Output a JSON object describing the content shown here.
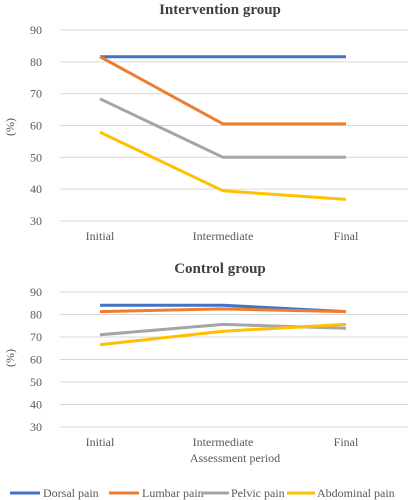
{
  "chart_data": [
    {
      "type": "line",
      "title": "Intervention group",
      "xlabel": "",
      "ylabel": "(%)",
      "categories": [
        "Initial",
        "Intermediate",
        "Final"
      ],
      "ylim": [
        30,
        90
      ],
      "yticks": [
        30,
        40,
        50,
        60,
        70,
        80,
        90
      ],
      "grid": "horizontal",
      "series": [
        {
          "name": "Dorsal pain",
          "color": "#4472C4",
          "values": [
            81.6,
            81.6,
            81.6
          ]
        },
        {
          "name": "Lumbar pain",
          "color": "#ED7D31",
          "values": [
            81.6,
            60.5,
            60.5
          ]
        },
        {
          "name": "Pelvic pain",
          "color": "#A5A5A5",
          "values": [
            68.4,
            50.0,
            50.0
          ]
        },
        {
          "name": "Abdominal pain",
          "color": "#FFC000",
          "values": [
            57.9,
            39.5,
            36.8
          ]
        }
      ]
    },
    {
      "type": "line",
      "title": "Control group",
      "xlabel": "Assessment period",
      "ylabel": "(%)",
      "categories": [
        "Initial",
        "Intermediate",
        "Final"
      ],
      "ylim": [
        30,
        90
      ],
      "yticks": [
        30,
        40,
        50,
        60,
        70,
        80,
        90
      ],
      "grid": "horizontal",
      "series": [
        {
          "name": "Dorsal pain",
          "color": "#4472C4",
          "values": [
            84.1,
            84.1,
            81.3
          ]
        },
        {
          "name": "Lumbar pain",
          "color": "#ED7D31",
          "values": [
            81.3,
            82.5,
            81.3
          ]
        },
        {
          "name": "Pelvic pain",
          "color": "#A5A5A5",
          "values": [
            71.0,
            75.6,
            73.9
          ]
        },
        {
          "name": "Abdominal pain",
          "color": "#FFC000",
          "values": [
            66.6,
            72.6,
            75.6
          ]
        }
      ]
    }
  ],
  "legend": {
    "position": "bottom",
    "items": [
      {
        "name": "Dorsal pain",
        "color": "#4472C4"
      },
      {
        "name": "Lumbar pain",
        "color": "#ED7D31"
      },
      {
        "name": "Pelvic pain",
        "color": "#A5A5A5"
      },
      {
        "name": "Abdominal pain",
        "color": "#FFC000"
      }
    ]
  }
}
